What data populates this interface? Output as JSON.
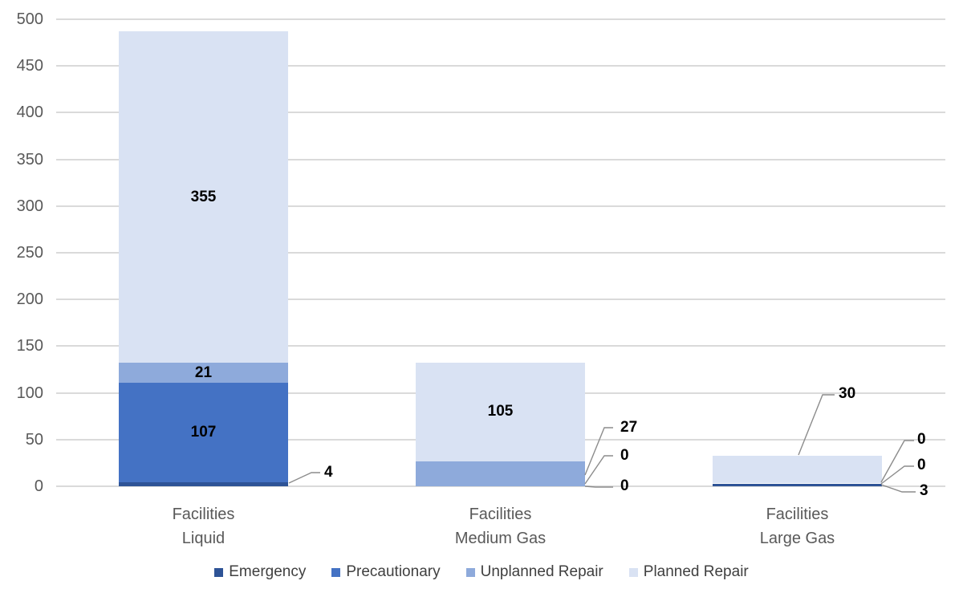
{
  "chart_data": {
    "type": "bar",
    "stacked": true,
    "title": "",
    "xlabel": "",
    "ylabel": "",
    "categories": [
      [
        "Facilities",
        "Liquid"
      ],
      [
        "Facilities",
        "Medium Gas"
      ],
      [
        "Facilities",
        "Large Gas"
      ]
    ],
    "series": [
      {
        "name": "Emergency",
        "color": "#2E5396",
        "values": [
          4,
          0,
          3
        ]
      },
      {
        "name": "Precautionary",
        "color": "#4472C4",
        "values": [
          107,
          0,
          0
        ]
      },
      {
        "name": "Unplanned Repair",
        "color": "#8EAADB",
        "values": [
          21,
          27,
          0
        ]
      },
      {
        "name": "Planned Repair",
        "color": "#D9E2F3",
        "values": [
          355,
          105,
          30
        ]
      }
    ],
    "totals": [
      487,
      132,
      33
    ],
    "y_axis": {
      "min": 0,
      "max": 500,
      "step": 50,
      "tick_labels": [
        "0",
        "50",
        "100",
        "150",
        "200",
        "250",
        "300",
        "350",
        "400",
        "450",
        "500"
      ]
    },
    "grid": true,
    "legend_position": "bottom",
    "data_labels": {
      "inside": [
        {
          "series": "Precautionary",
          "category": 0,
          "text": "107"
        },
        {
          "series": "Unplanned Repair",
          "category": 0,
          "text": "21"
        },
        {
          "series": "Planned Repair",
          "category": 0,
          "text": "355"
        },
        {
          "series": "Planned Repair",
          "category": 1,
          "text": "105"
        }
      ],
      "callouts": [
        {
          "series": "Emergency",
          "category": 0,
          "text": "4"
        },
        {
          "series": "Unplanned Repair",
          "category": 1,
          "text": "27"
        },
        {
          "series": "Precautionary",
          "category": 1,
          "text": "0"
        },
        {
          "series": "Emergency",
          "category": 1,
          "text": "0"
        },
        {
          "series": "Planned Repair",
          "category": 2,
          "text": "30"
        },
        {
          "series": "Unplanned Repair",
          "category": 2,
          "text": "0"
        },
        {
          "series": "Precautionary",
          "category": 2,
          "text": "0"
        },
        {
          "series": "Emergency",
          "category": 2,
          "text": "3"
        }
      ]
    },
    "colors": {
      "gridline": "#DADADA",
      "axis_text": "#595959",
      "category_text": "#595959",
      "data_label": "#000000",
      "leader_line": "#8C8C8C",
      "legend_text": "#404040",
      "background": "#FFFFFF"
    }
  }
}
